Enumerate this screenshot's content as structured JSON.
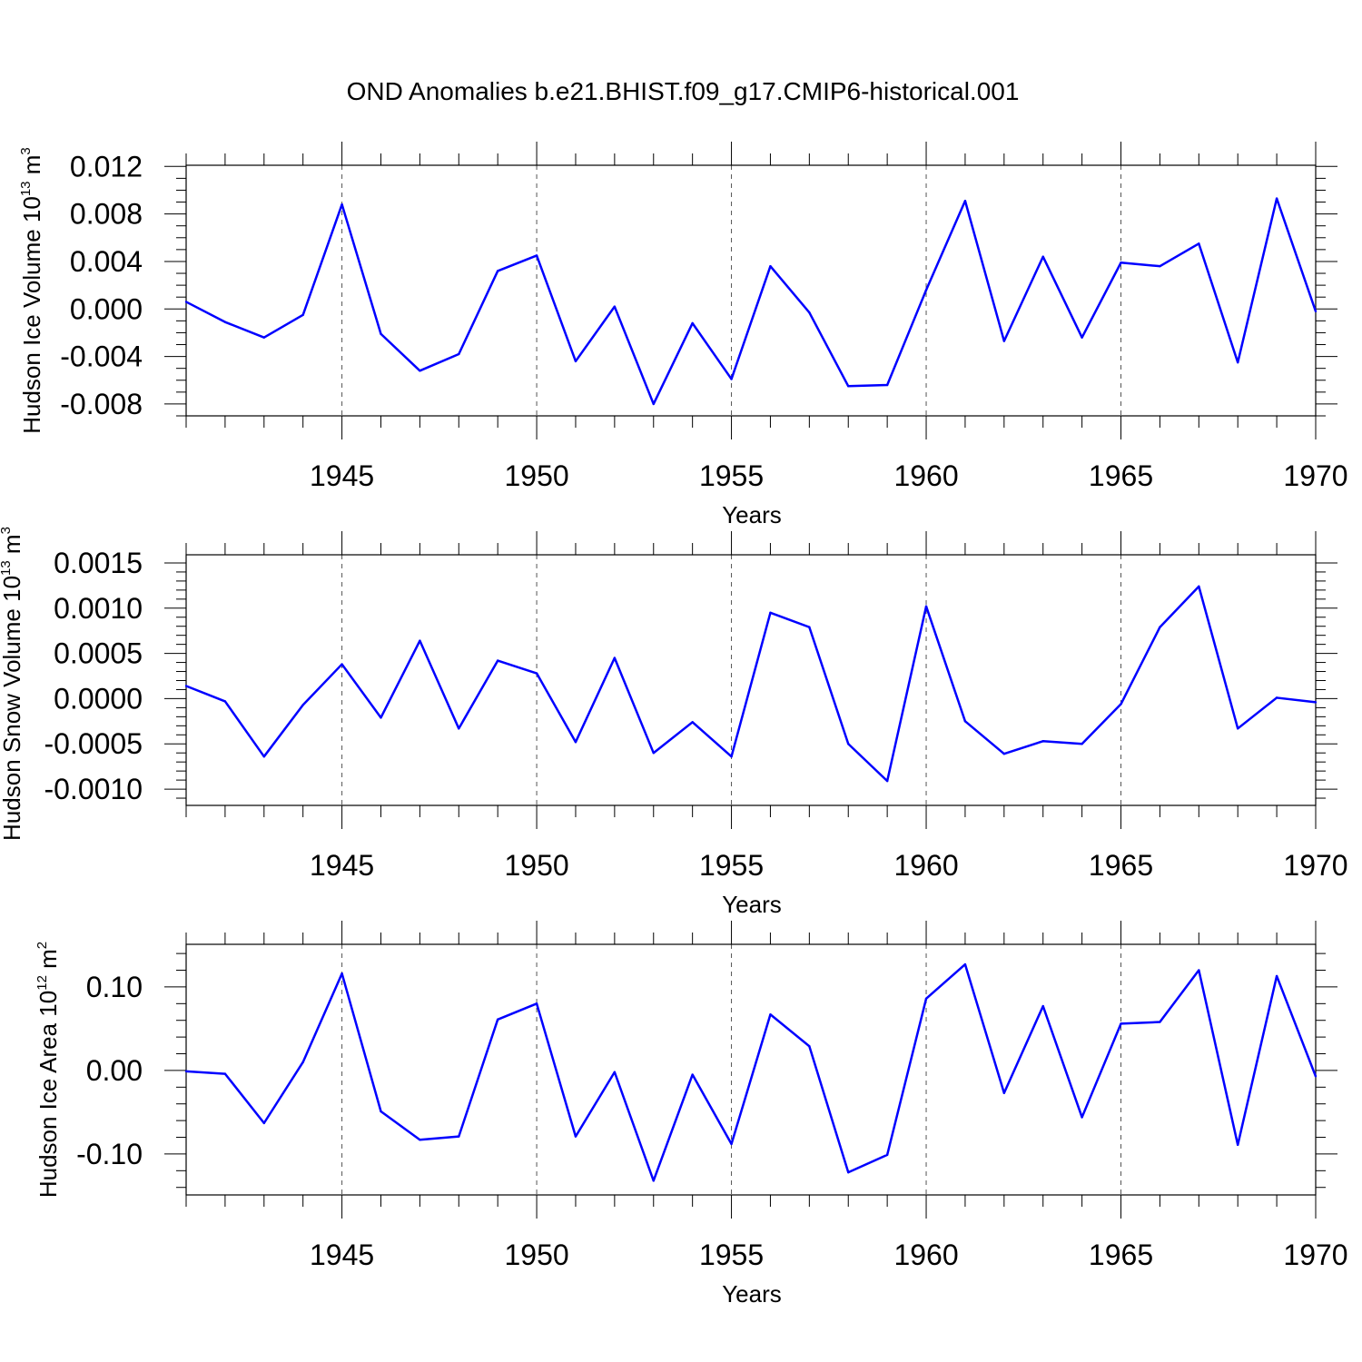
{
  "title": "OND Anomalies b.e21.BHIST.f09_g17.CMIP6-historical.001",
  "line_color": "#0000ff",
  "chart_data": [
    {
      "type": "line",
      "ylabel": "Hudson Ice Volume 10",
      "ylabel_exponent": "13",
      "ylabel_unit": " m",
      "ylabel_unit_exponent": "3",
      "xlabel": "Years",
      "xlim": [
        1941,
        1970
      ],
      "ylim": [
        -0.009,
        0.0121
      ],
      "x_ticks": [
        1945,
        1950,
        1955,
        1960,
        1965,
        1970
      ],
      "x_tick_labels": [
        "1945",
        "1950",
        "1955",
        "1960",
        "1965",
        "1970"
      ],
      "y_ticks": [
        0.012,
        0.008,
        0.004,
        0.0,
        -0.004,
        -0.008
      ],
      "y_tick_labels": [
        "0.012",
        "0.008",
        "0.004",
        "0.000",
        "-0.004",
        "-0.008"
      ],
      "y_minor_step": 0.001,
      "grid": "vertical dashed at major x ticks",
      "x": [
        1941,
        1942,
        1943,
        1944,
        1945,
        1946,
        1947,
        1948,
        1949,
        1950,
        1951,
        1952,
        1953,
        1954,
        1955,
        1956,
        1957,
        1958,
        1959,
        1960,
        1961,
        1962,
        1963,
        1964,
        1965,
        1966,
        1967,
        1968,
        1969,
        1970
      ],
      "y": [
        0.0006,
        -0.0011,
        -0.0024,
        -0.0005,
        0.0088,
        -0.0021,
        -0.0052,
        -0.0038,
        0.0032,
        0.0045,
        -0.0044,
        0.0002,
        -0.008,
        -0.0012,
        -0.0059,
        0.0036,
        -0.0003,
        -0.0065,
        -0.0064,
        0.0016,
        0.0091,
        -0.0027,
        0.0044,
        -0.0024,
        0.0039,
        0.0036,
        0.0055,
        -0.0045,
        0.0093,
        -0.0002
      ]
    },
    {
      "type": "line",
      "ylabel": "Hudson Snow Volume 10",
      "ylabel_exponent": "13",
      "ylabel_unit": " m",
      "ylabel_unit_exponent": "3",
      "xlabel": "Years",
      "xlim": [
        1941,
        1970
      ],
      "ylim": [
        -0.00118,
        0.00159
      ],
      "x_ticks": [
        1945,
        1950,
        1955,
        1960,
        1965,
        1970
      ],
      "x_tick_labels": [
        "1945",
        "1950",
        "1955",
        "1960",
        "1965",
        "1970"
      ],
      "y_ticks": [
        0.0015,
        0.001,
        0.0005,
        0.0,
        -0.0005,
        -0.001
      ],
      "y_tick_labels": [
        "0.0015",
        "0.0010",
        "0.0005",
        "0.0000",
        "-0.0005",
        "-0.0010"
      ],
      "y_minor_step": 0.0001,
      "grid": "vertical dashed at major x ticks",
      "x": [
        1941,
        1942,
        1943,
        1944,
        1945,
        1946,
        1947,
        1948,
        1949,
        1950,
        1951,
        1952,
        1953,
        1954,
        1955,
        1956,
        1957,
        1958,
        1959,
        1960,
        1961,
        1962,
        1963,
        1964,
        1965,
        1966,
        1967,
        1968,
        1969,
        1970
      ],
      "y": [
        0.00014,
        -3e-05,
        -0.00064,
        -7e-05,
        0.00038,
        -0.00021,
        0.00064,
        -0.00033,
        0.00042,
        0.00028,
        -0.00048,
        0.00045,
        -0.0006,
        -0.00026,
        -0.00064,
        0.00095,
        0.00079,
        -0.0005,
        -0.00091,
        0.00102,
        -0.00025,
        -0.00061,
        -0.00047,
        -0.0005,
        -6e-05,
        0.00079,
        0.00124,
        -0.00033,
        1e-05,
        -4e-05
      ]
    },
    {
      "type": "line",
      "ylabel": "Hudson Ice Area 10",
      "ylabel_exponent": "12",
      "ylabel_unit": " m",
      "ylabel_unit_exponent": "2",
      "xlabel": "Years",
      "xlim": [
        1941,
        1970
      ],
      "ylim": [
        -0.149,
        0.151
      ],
      "x_ticks": [
        1945,
        1950,
        1955,
        1960,
        1965,
        1970
      ],
      "x_tick_labels": [
        "1945",
        "1950",
        "1955",
        "1960",
        "1965",
        "1970"
      ],
      "y_ticks": [
        0.1,
        0.0,
        -0.1
      ],
      "y_tick_labels": [
        "0.10",
        "0.00",
        "-0.10"
      ],
      "y_minor_step": 0.02,
      "grid": "vertical dashed at major x ticks",
      "x": [
        1941,
        1942,
        1943,
        1944,
        1945,
        1946,
        1947,
        1948,
        1949,
        1950,
        1951,
        1952,
        1953,
        1954,
        1955,
        1956,
        1957,
        1958,
        1959,
        1960,
        1961,
        1962,
        1963,
        1964,
        1965,
        1966,
        1967,
        1968,
        1969,
        1970
      ],
      "y": [
        -0.001,
        -0.004,
        -0.063,
        0.01,
        0.116,
        -0.049,
        -0.083,
        -0.079,
        0.061,
        0.08,
        -0.079,
        -0.002,
        -0.132,
        -0.005,
        -0.088,
        0.067,
        0.029,
        -0.122,
        -0.101,
        0.086,
        0.127,
        -0.027,
        0.077,
        -0.056,
        0.056,
        0.058,
        0.12,
        -0.089,
        0.113,
        -0.007
      ]
    }
  ]
}
